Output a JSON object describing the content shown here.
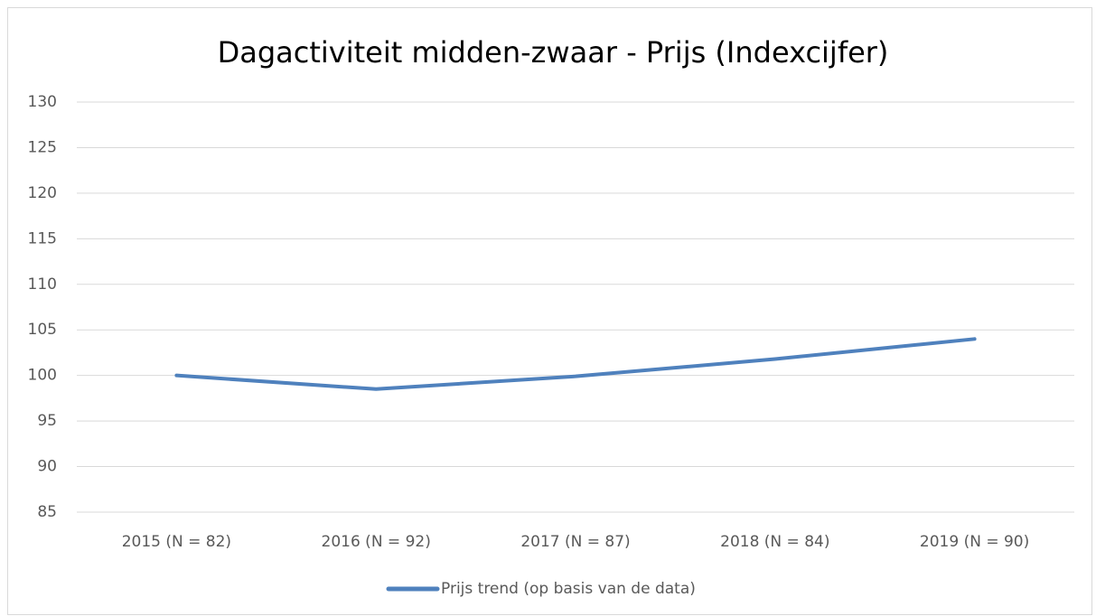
{
  "chart_data": {
    "type": "line",
    "title": "Dagactiviteit midden-zwaar - Prijs (Indexcijfer)",
    "categories": [
      "2015 (N = 82)",
      "2016 (N = 92)",
      "2017 (N = 87)",
      "2018 (N = 84)",
      "2019 (N = 90)"
    ],
    "series": [
      {
        "name": "Prijs trend (op basis van de data)",
        "color": "#4f81bd",
        "values": [
          100,
          98.5,
          99.9,
          101.8,
          104
        ]
      }
    ],
    "ylim": [
      85,
      130
    ],
    "yticks": [
      85,
      90,
      95,
      100,
      105,
      110,
      115,
      120,
      125,
      130
    ],
    "grid": true,
    "legend": "bottom"
  }
}
